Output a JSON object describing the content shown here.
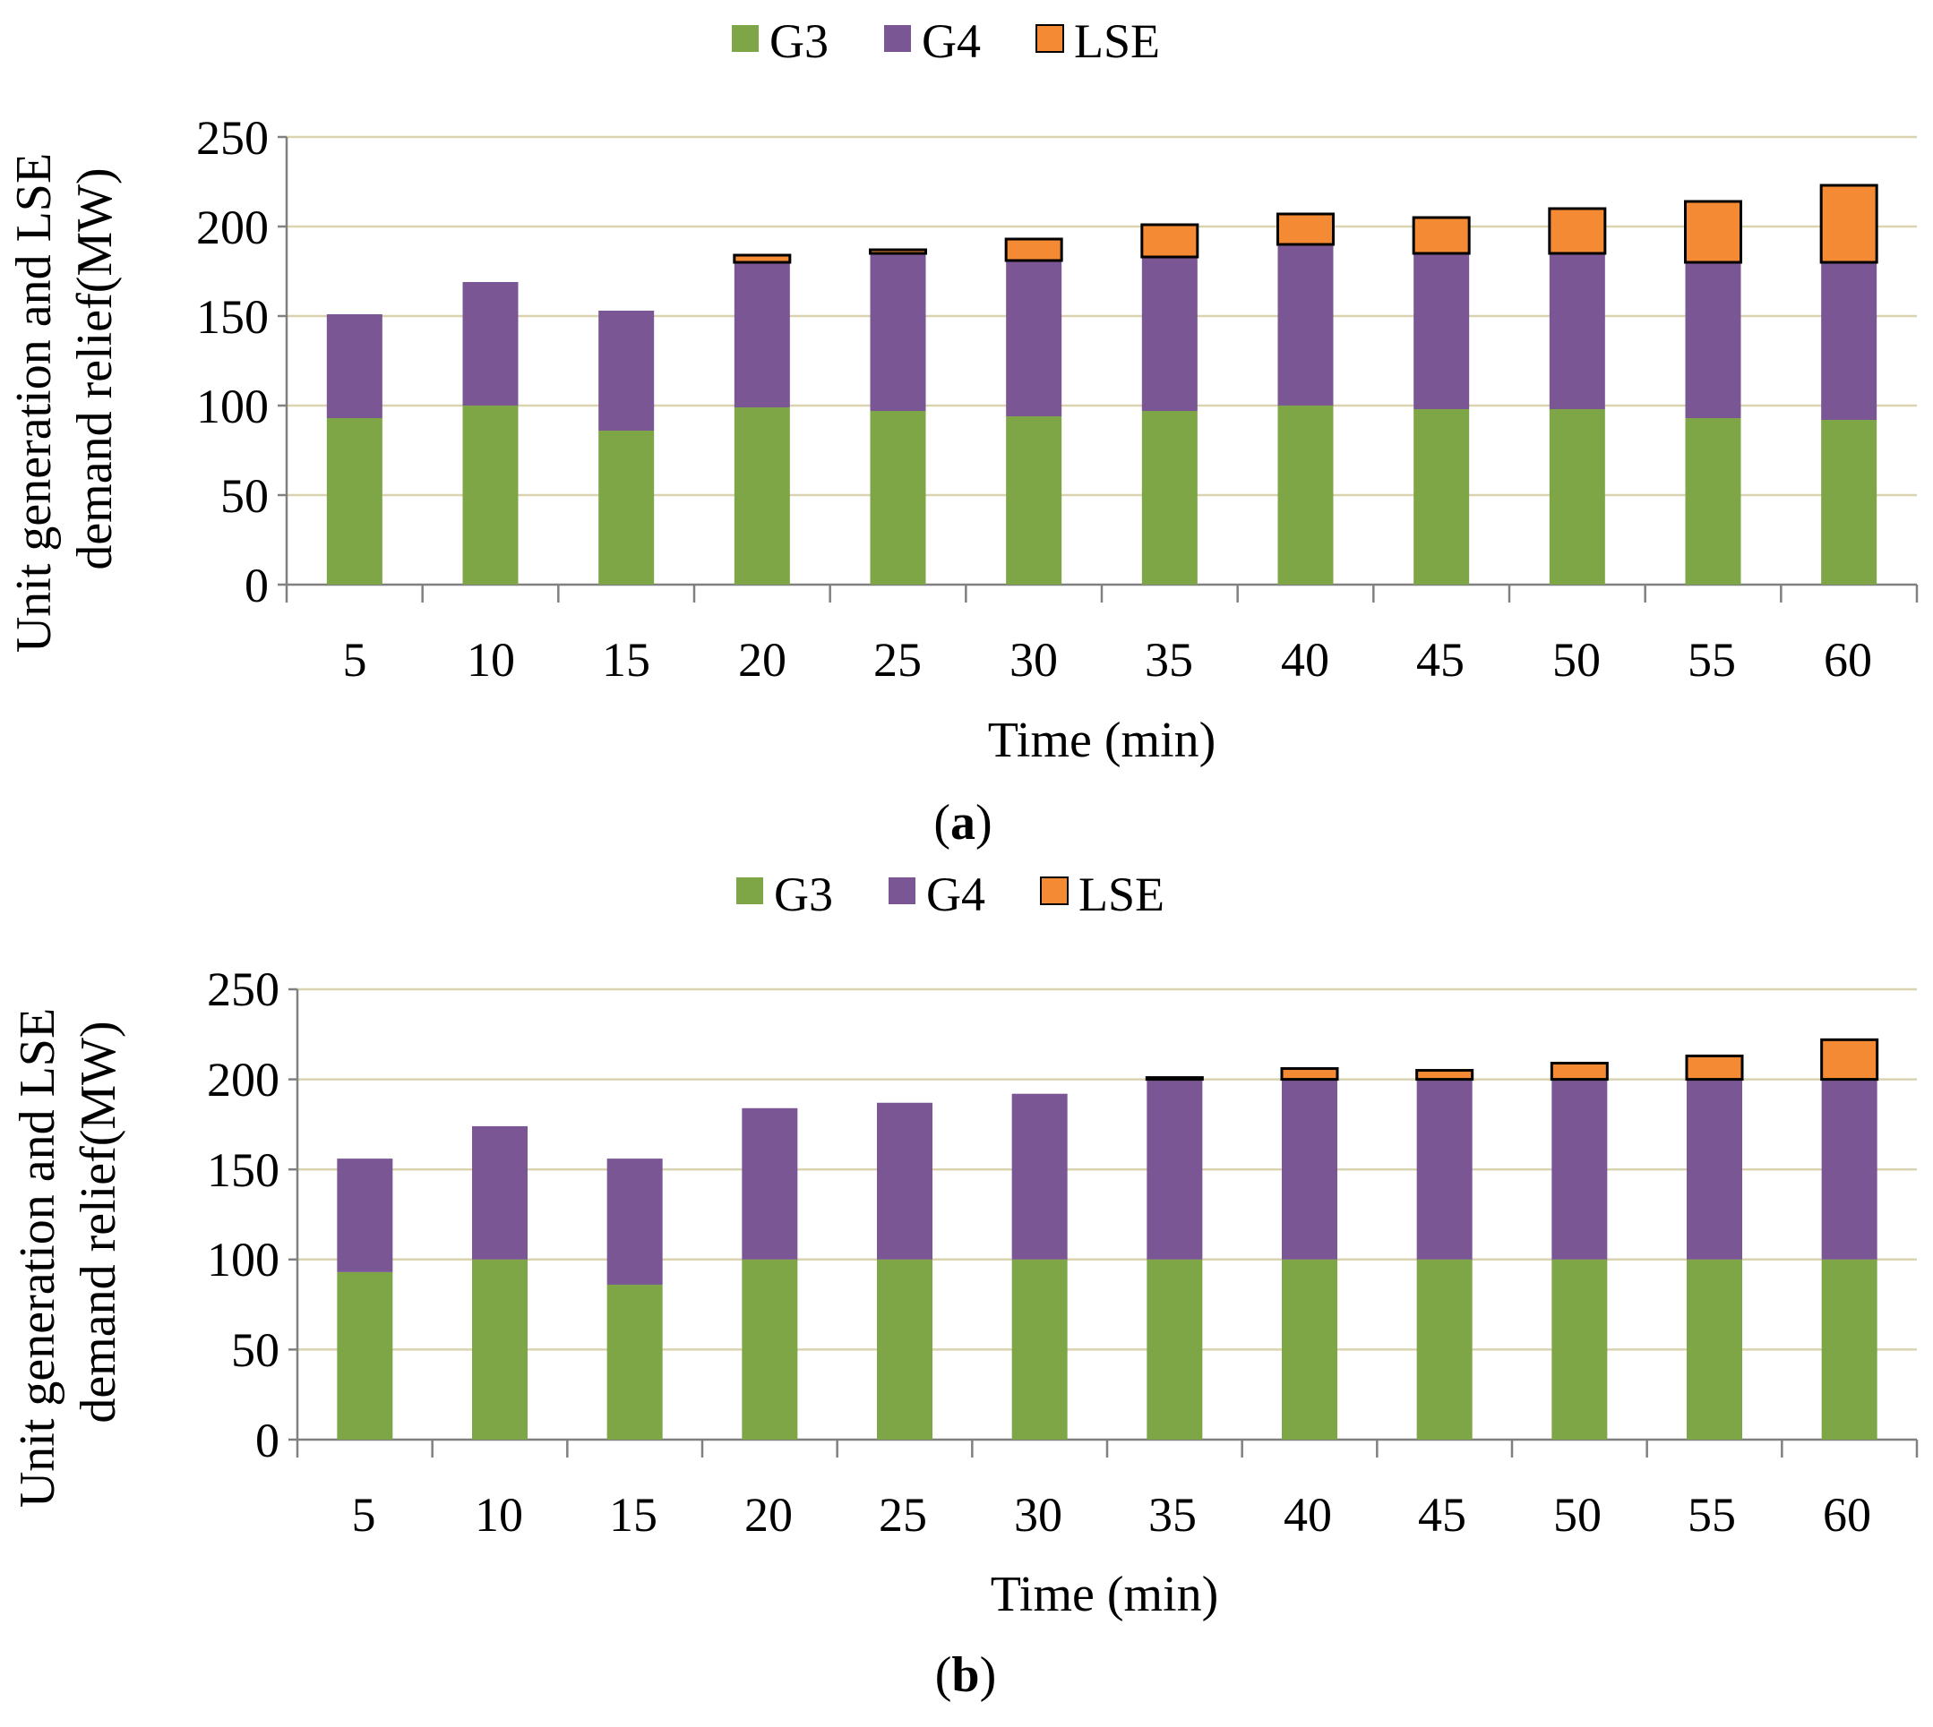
{
  "legend": [
    "G3",
    "G4",
    "LSE"
  ],
  "colors": {
    "G3": "#7ea646",
    "G4": "#7a5794",
    "LSE": "#f48a33",
    "grid": "#d9d3b0",
    "axis": "#808080"
  },
  "chart_data": [
    {
      "id": "a",
      "type": "bar",
      "stacked": true,
      "caption": "a",
      "ylabel_line1": "Unit generation and LSE",
      "ylabel_line2": "demand relief(MW)",
      "xlabel": "Time (min)",
      "ylim": [
        0,
        250
      ],
      "yticks": [
        0,
        50,
        100,
        150,
        200,
        250
      ],
      "grid": true,
      "legend_position": "top",
      "categories": [
        "5",
        "10",
        "15",
        "20",
        "25",
        "30",
        "35",
        "40",
        "45",
        "50",
        "55",
        "60"
      ],
      "series": [
        {
          "name": "G3",
          "values": [
            93,
            100,
            86,
            99,
            97,
            94,
            97,
            100,
            98,
            98,
            93,
            92
          ]
        },
        {
          "name": "G4",
          "values": [
            58,
            69,
            67,
            81,
            88,
            87,
            86,
            90,
            87,
            87,
            87,
            88
          ]
        },
        {
          "name": "LSE",
          "values": [
            0,
            0,
            0,
            4,
            2,
            12,
            18,
            17,
            20,
            25,
            34,
            43
          ]
        }
      ]
    },
    {
      "id": "b",
      "type": "bar",
      "stacked": true,
      "caption": "b",
      "ylabel_line1": "Unit generation and LSE",
      "ylabel_line2": "demand relief(MW)",
      "xlabel": "Time (min)",
      "ylim": [
        0,
        250
      ],
      "yticks": [
        0,
        50,
        100,
        150,
        200,
        250
      ],
      "grid": true,
      "legend_position": "top",
      "categories": [
        "5",
        "10",
        "15",
        "20",
        "25",
        "30",
        "35",
        "40",
        "45",
        "50",
        "55",
        "60"
      ],
      "series": [
        {
          "name": "G3",
          "values": [
            93,
            100,
            86,
            100,
            100,
            100,
            100,
            100,
            100,
            100,
            100,
            100
          ]
        },
        {
          "name": "G4",
          "values": [
            63,
            74,
            70,
            84,
            87,
            92,
            100,
            100,
            100,
            100,
            100,
            100
          ]
        },
        {
          "name": "LSE",
          "values": [
            0,
            0,
            0,
            0,
            0,
            0,
            1,
            6,
            5,
            9,
            13,
            22
          ]
        }
      ]
    }
  ]
}
